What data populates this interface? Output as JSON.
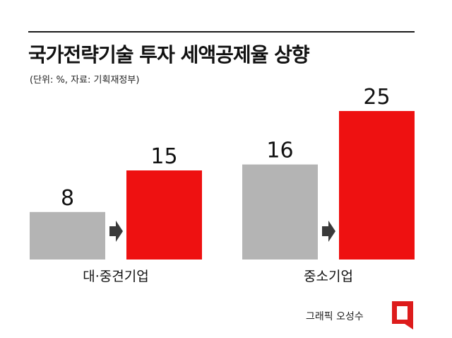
{
  "title": "국가전략기술 투자 세액공제율 상향",
  "subtitle": "(단위: %, 자료: 기획재정부)",
  "credit": "그래픽 오성수",
  "colors": {
    "before": "#b4b4b4",
    "after": "#ee1111",
    "arrow": "#3a3a3a",
    "text": "#111111",
    "logo": "#dd1c1c"
  },
  "chart_data": {
    "type": "bar",
    "categories": [
      "대·중견기업",
      "중소기업"
    ],
    "series": [
      {
        "values": [
          8,
          16
        ]
      },
      {
        "values": [
          15,
          25
        ]
      }
    ],
    "data_labels": [
      [
        "8",
        "15"
      ],
      [
        "16",
        "25"
      ]
    ],
    "ylim": [
      0,
      25
    ],
    "grid": false,
    "legend": "none"
  }
}
